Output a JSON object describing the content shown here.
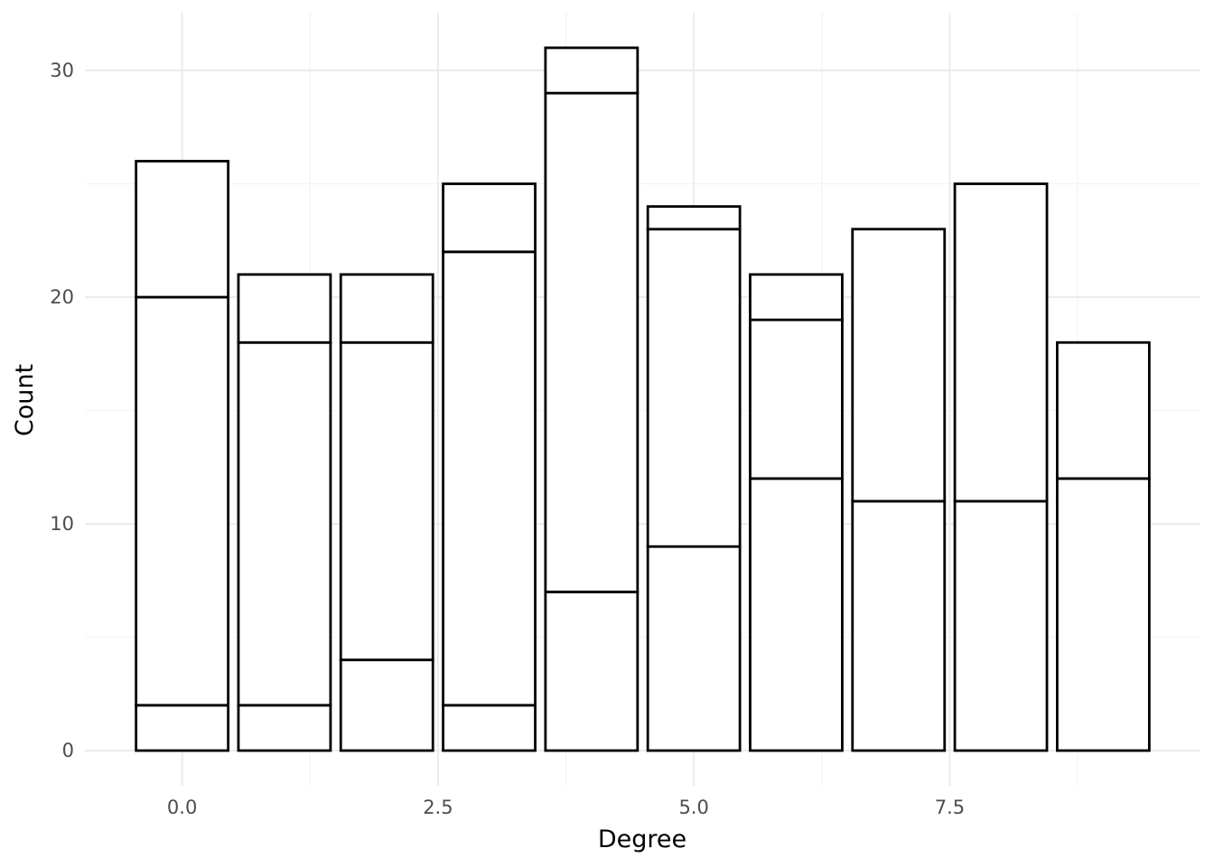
{
  "chart_data": {
    "type": "bar",
    "stacked": true,
    "title": "",
    "xlabel": "Degree",
    "ylabel": "Count",
    "x": [
      0,
      1,
      2,
      3,
      4,
      5,
      6,
      7,
      8,
      9
    ],
    "stacks": [
      [
        2,
        18,
        6
      ],
      [
        2,
        16,
        3
      ],
      [
        4,
        14,
        3
      ],
      [
        2,
        20,
        3
      ],
      [
        7,
        22,
        2
      ],
      [
        9,
        14,
        1
      ],
      [
        12,
        7,
        2
      ],
      [
        11,
        12
      ],
      [
        11,
        14
      ],
      [
        12,
        6
      ]
    ],
    "totals": [
      26,
      21,
      21,
      25,
      31,
      24,
      21,
      23,
      25,
      18
    ],
    "xlim": [
      -0.95,
      9.95
    ],
    "ylim": [
      -1.55,
      32.55
    ],
    "x_ticks": [
      0.0,
      2.5,
      5.0,
      7.5
    ],
    "x_tick_labels": [
      "0.0",
      "2.5",
      "5.0",
      "7.5"
    ],
    "y_ticks": [
      0,
      10,
      20,
      30
    ],
    "y_tick_labels": [
      "0",
      "10",
      "20",
      "30"
    ],
    "grid": true,
    "legend": "none",
    "colors": {
      "fill": "#ffffff",
      "outline": "#000000",
      "grid": "#ebebeb",
      "tick_text": "#4d4d4d"
    }
  }
}
